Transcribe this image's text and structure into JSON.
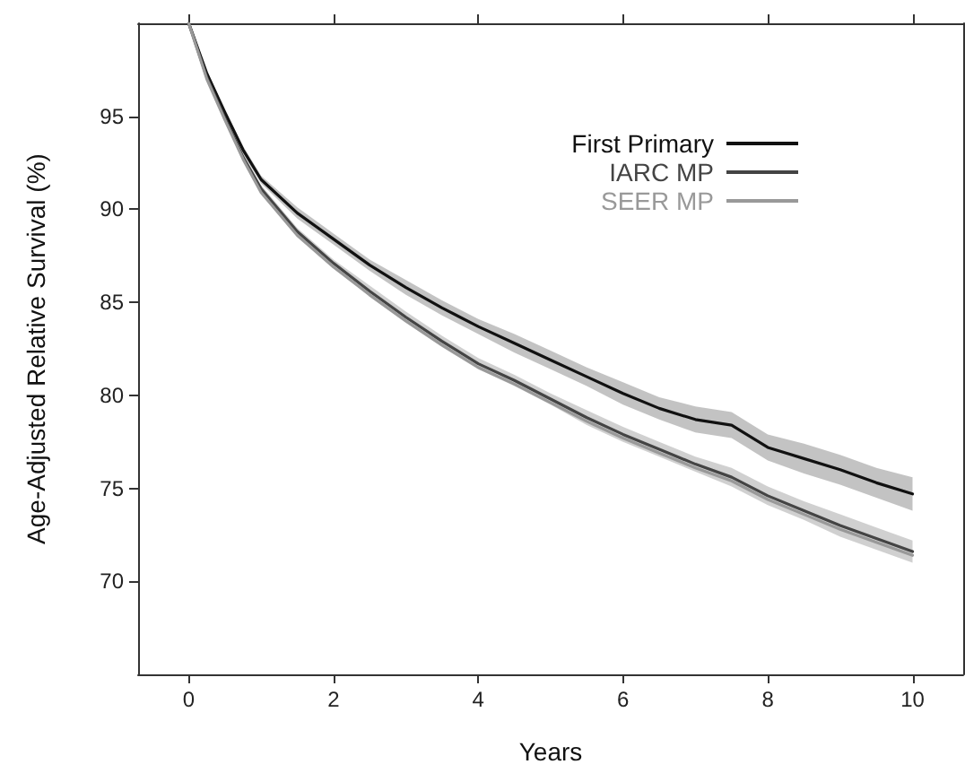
{
  "chart_data": {
    "type": "line",
    "xlabel": "Years",
    "ylabel": "Age-Adjusted Relative Survival (%)",
    "x": [
      0,
      0.25,
      0.5,
      0.75,
      1,
      1.5,
      2,
      2.5,
      3,
      3.5,
      4,
      4.5,
      5,
      5.5,
      6,
      6.5,
      7,
      7.5,
      8,
      8.5,
      9,
      9.5,
      10
    ],
    "series": [
      {
        "name": "First Primary",
        "color": "#111111",
        "values": [
          100,
          97.3,
          95.2,
          93.2,
          91.6,
          89.8,
          88.4,
          87.0,
          85.8,
          84.7,
          83.7,
          82.8,
          81.9,
          81.0,
          80.1,
          79.3,
          78.7,
          78.4,
          77.2,
          76.6,
          76.0,
          75.3,
          74.7
        ],
        "lower": [
          100,
          97.2,
          95.0,
          93.0,
          91.4,
          89.5,
          88.1,
          86.7,
          85.4,
          84.3,
          83.3,
          82.3,
          81.4,
          80.5,
          79.5,
          78.7,
          78.0,
          77.7,
          76.5,
          75.8,
          75.2,
          74.5,
          73.8
        ],
        "upper": [
          100,
          97.4,
          95.4,
          93.4,
          91.8,
          90.1,
          88.7,
          87.3,
          86.2,
          85.1,
          84.1,
          83.3,
          82.4,
          81.5,
          80.7,
          79.9,
          79.4,
          79.1,
          77.9,
          77.4,
          76.8,
          76.1,
          75.6
        ]
      },
      {
        "name": "IARC MP",
        "color": "#444444",
        "values": [
          100,
          97.1,
          94.9,
          92.8,
          91.1,
          88.8,
          87.1,
          85.6,
          84.2,
          82.9,
          81.7,
          80.8,
          79.8,
          78.8,
          77.9,
          77.1,
          76.3,
          75.6,
          74.6,
          73.8,
          73.0,
          72.3,
          71.6
        ],
        "lower": [
          100,
          97.0,
          94.8,
          92.6,
          90.9,
          88.6,
          86.9,
          85.3,
          83.9,
          82.6,
          81.4,
          80.5,
          79.5,
          78.4,
          77.5,
          76.7,
          75.9,
          75.1,
          74.1,
          73.3,
          72.4,
          71.7,
          71.0
        ],
        "upper": [
          100,
          97.2,
          95.0,
          93.0,
          91.3,
          89.0,
          87.3,
          85.9,
          84.5,
          83.2,
          82.0,
          81.1,
          80.1,
          79.2,
          78.3,
          77.5,
          76.7,
          76.1,
          75.1,
          74.3,
          73.6,
          72.9,
          72.2
        ]
      },
      {
        "name": "SEER MP",
        "color": "#999999",
        "values": [
          100,
          97.0,
          94.8,
          92.7,
          90.9,
          88.6,
          86.9,
          85.4,
          84.0,
          82.7,
          81.5,
          80.6,
          79.6,
          78.6,
          77.7,
          76.9,
          76.1,
          75.4,
          74.4,
          73.6,
          72.8,
          72.1,
          71.4
        ]
      }
    ],
    "xlim": [
      -0.7,
      10.7
    ],
    "xticks": [
      0,
      2,
      4,
      6,
      8,
      10
    ],
    "ylim": [
      65,
      100
    ],
    "yticks": [
      70,
      75,
      80,
      85,
      90,
      95
    ],
    "grid": false,
    "legend": "top right",
    "marker": "none",
    "line_style": "solid"
  }
}
